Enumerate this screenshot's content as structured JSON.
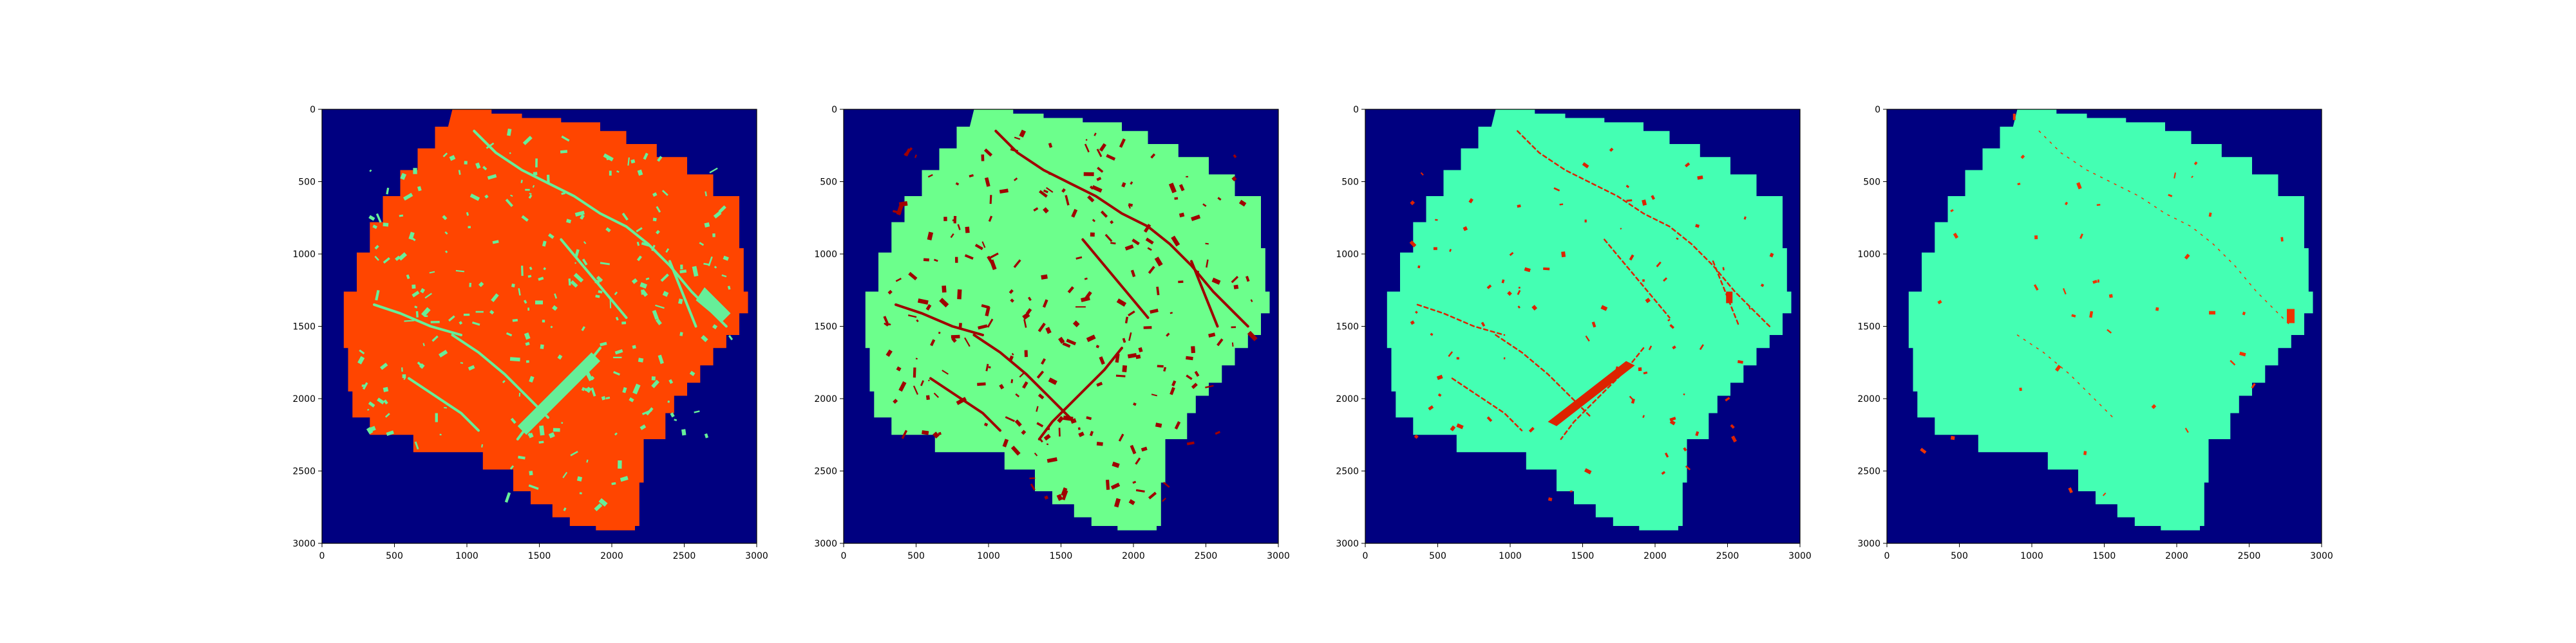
{
  "figure": {
    "background": "#ffffff",
    "colormap": {
      "background": "#000080",
      "class_a": "#ff4500",
      "class_b": "#66ff88",
      "class_c": "#44ffb3",
      "class_d": "#7f0000"
    }
  },
  "chart_data": [
    {
      "type": "heatmap",
      "title": "",
      "xlabel": "",
      "ylabel": "",
      "xlim": [
        0,
        3000
      ],
      "ylim": [
        3000,
        0
      ],
      "xticks": [
        0,
        500,
        1000,
        1500,
        2000,
        2500,
        3000
      ],
      "yticks": [
        0,
        500,
        1000,
        1500,
        2000,
        2500,
        3000
      ],
      "xtick_labels": [
        "0",
        "500",
        "1000",
        "1500",
        "2000",
        "2500",
        "3000"
      ],
      "ytick_labels": [
        "0",
        "500",
        "1000",
        "1500",
        "2000",
        "2500",
        "3000"
      ],
      "fill_color": "#ff4500",
      "detail_color": "#66ee99",
      "bg_color": "#000080",
      "detail": "dense"
    },
    {
      "type": "heatmap",
      "title": "",
      "xlabel": "",
      "ylabel": "",
      "xlim": [
        0,
        3000
      ],
      "ylim": [
        3000,
        0
      ],
      "xticks": [
        0,
        500,
        1000,
        1500,
        2000,
        2500,
        3000
      ],
      "yticks": [
        0,
        500,
        1000,
        1500,
        2000,
        2500,
        3000
      ],
      "xtick_labels": [
        "0",
        "500",
        "1000",
        "1500",
        "2000",
        "2500",
        "3000"
      ],
      "ytick_labels": [
        "0",
        "500",
        "1000",
        "1500",
        "2000",
        "2500",
        "3000"
      ],
      "fill_color": "#6cff8c",
      "detail_color": "#a00000",
      "bg_color": "#000080",
      "detail": "dense"
    },
    {
      "type": "heatmap",
      "title": "",
      "xlabel": "",
      "ylabel": "",
      "xlim": [
        0,
        3000
      ],
      "ylim": [
        3000,
        0
      ],
      "xticks": [
        0,
        500,
        1000,
        1500,
        2000,
        2500,
        3000
      ],
      "yticks": [
        0,
        500,
        1000,
        1500,
        2000,
        2500,
        3000
      ],
      "xtick_labels": [
        "0",
        "500",
        "1000",
        "1500",
        "2000",
        "2500",
        "3000"
      ],
      "ytick_labels": [
        "0",
        "500",
        "1000",
        "1500",
        "2000",
        "2500",
        "3000"
      ],
      "fill_color": "#44ffb3",
      "detail_color": "#dd2200",
      "bg_color": "#000080",
      "detail": "medium"
    },
    {
      "type": "heatmap",
      "title": "",
      "xlabel": "",
      "ylabel": "",
      "xlim": [
        0,
        3000
      ],
      "ylim": [
        3000,
        0
      ],
      "xticks": [
        0,
        500,
        1000,
        1500,
        2000,
        2500,
        3000
      ],
      "yticks": [
        0,
        500,
        1000,
        1500,
        2000,
        2500,
        3000
      ],
      "xtick_labels": [
        "0",
        "500",
        "1000",
        "1500",
        "2000",
        "2500",
        "3000"
      ],
      "ytick_labels": [
        "0",
        "500",
        "1000",
        "1500",
        "2000",
        "2500",
        "3000"
      ],
      "fill_color": "#44ffb3",
      "detail_color": "#ee3300",
      "bg_color": "#000080",
      "detail": "sparse"
    }
  ]
}
